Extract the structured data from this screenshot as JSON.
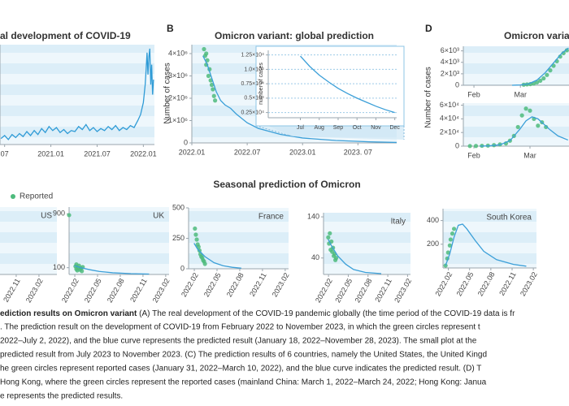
{
  "panel_labels": [
    "B",
    "D"
  ],
  "seasonal_title": "Seasonal prediction of Omicron",
  "caption": {
    "lead": "ediction results on Omicron variant",
    "lines": [
      " (A) The real development of the COVID-19 pandemic globally (the time period of the COVID-19 data is fr",
      ". The prediction result on the development of COVID-19 from February 2022 to November 2023, in which the green circles represent t",
      "2022–July 2, 2022), and the blue curve represents the predicted result (January 18, 2022–November 28, 2023). The small plot at the",
      "predicted result from July 2023 to November 2023. (C) The prediction results of 6 countries, namely the United States, the United Kingd",
      "he green circles represent reported cases (January 31, 2022–March 10, 2022), and the blue curve indicates the predicted result. (D) T",
      "Hong Kong, where the green circles represent the reported cases (mainland China: March 1, 2022–March 24, 2022; Hong Kong: Janua",
      "e represents the predicted results."
    ]
  },
  "chart_data": [
    {
      "type": "line",
      "title": "al development of COVID-19",
      "bands": true,
      "xlim": [
        2020.45,
        2022.12
      ],
      "ylim": [
        0,
        100
      ],
      "xticks": [
        {
          "value": 2020.5,
          "label": "07"
        },
        {
          "value": 2021.0,
          "label": "2021.01"
        },
        {
          "value": 2021.5,
          "label": "2021.07"
        },
        {
          "value": 2022.0,
          "label": "2022.01"
        }
      ],
      "series": [
        {
          "type": "line",
          "color": "#2f9bd6",
          "x": [
            2020.46,
            2020.5,
            2020.54,
            2020.58,
            2020.62,
            2020.66,
            2020.7,
            2020.74,
            2020.78,
            2020.82,
            2020.86,
            2020.9,
            2020.94,
            2020.98,
            2021.02,
            2021.06,
            2021.1,
            2021.14,
            2021.18,
            2021.22,
            2021.26,
            2021.3,
            2021.34,
            2021.38,
            2021.42,
            2021.46,
            2021.5,
            2021.54,
            2021.58,
            2021.62,
            2021.66,
            2021.7,
            2021.74,
            2021.78,
            2021.82,
            2021.86,
            2021.9,
            2021.94,
            2021.97,
            2022.0,
            2022.02,
            2022.03,
            2022.04,
            2022.05,
            2022.06,
            2022.07,
            2022.08,
            2022.09,
            2022.1,
            2022.11
          ],
          "values": [
            6,
            9,
            5,
            10,
            7,
            11,
            8,
            13,
            9,
            14,
            10,
            16,
            12,
            18,
            14,
            17,
            12,
            15,
            11,
            14,
            13,
            18,
            15,
            20,
            14,
            17,
            13,
            16,
            14,
            18,
            15,
            19,
            14,
            17,
            15,
            19,
            17,
            24,
            30,
            42,
            60,
            75,
            92,
            70,
            88,
            96,
            60,
            80,
            50,
            65
          ]
        }
      ]
    },
    {
      "type": "line",
      "title": "Omicron variant: global prediction",
      "ylabel": "Number of cases",
      "bands": true,
      "xlim": [
        2022.0,
        2023.85
      ],
      "ylim": [
        0,
        4400000
      ],
      "xticks": [
        {
          "value": 2022.0,
          "label": "2022.01"
        },
        {
          "value": 2022.5,
          "label": "2022.07"
        },
        {
          "value": 2023.0,
          "label": "2023.01"
        },
        {
          "value": 2023.5,
          "label": "2023. 07"
        }
      ],
      "yticks": [
        0,
        {
          "value": 1000000,
          "label": "1×10⁶"
        },
        {
          "value": 2000000,
          "label": "2×10⁶"
        },
        {
          "value": 3000000,
          "label": "3×10⁶"
        },
        {
          "value": 4000000,
          "label": "4×10⁶"
        }
      ],
      "series": [
        {
          "type": "scatter",
          "color": "#4dbb7c",
          "x": [
            2022.11,
            2022.12,
            2022.13,
            2022.13,
            2022.14,
            2022.15,
            2022.16,
            2022.17,
            2022.18,
            2022.19,
            2022.2,
            2022.21
          ],
          "values": [
            4200000,
            3900000,
            4000000,
            3500000,
            3700000,
            3000000,
            3300000,
            2800000,
            2600000,
            2400000,
            2100000,
            1900000
          ]
        },
        {
          "type": "line",
          "color": "#3b9fd8",
          "x": [
            2022.1,
            2022.14,
            2022.18,
            2022.22,
            2022.26,
            2022.3,
            2022.35,
            2022.4,
            2022.5,
            2022.6,
            2022.8,
            2023.0,
            2023.3,
            2023.6,
            2023.85
          ],
          "values": [
            3900000,
            3500000,
            2900000,
            2300000,
            1900000,
            1700000,
            1550000,
            1300000,
            900000,
            650000,
            380000,
            220000,
            110000,
            50000,
            20000
          ]
        }
      ]
    },
    {
      "type": "line",
      "ylabel": "number of cases",
      "grid": true,
      "xlim": [
        5.3,
        12.1
      ],
      "ylim": [
        1600,
        13300
      ],
      "xticks": [
        {
          "value": 7,
          "label": "Jul"
        },
        {
          "value": 8,
          "label": "Aug"
        },
        {
          "value": 9,
          "label": "Sep"
        },
        {
          "value": 10,
          "label": "Oct"
        },
        {
          "value": 11,
          "label": "Nov"
        },
        {
          "value": 12,
          "label": "Dec"
        }
      ],
      "yticks": [
        {
          "value": 2500,
          "label": "0.25×10⁴"
        },
        {
          "value": 5000,
          "label": "0.5×10⁴"
        },
        {
          "value": 7500,
          "label": "0.75×10⁴"
        },
        {
          "value": 10000,
          "label": "1.0×10⁴"
        },
        {
          "value": 12500,
          "label": "1.25×10⁴"
        }
      ],
      "series": [
        {
          "type": "line",
          "color": "#3b9fd8",
          "x": [
            7,
            7.5,
            8,
            8.5,
            9,
            9.5,
            10,
            10.5,
            11,
            11.5,
            12
          ],
          "values": [
            12300,
            10500,
            9000,
            7800,
            6700,
            5800,
            5000,
            4300,
            3600,
            3000,
            2500
          ]
        }
      ]
    },
    {
      "type": "line",
      "title": "Omicron varian",
      "ylabel": "Number of cases",
      "bands": true,
      "xlim": [
        25.6,
        89.3
      ],
      "ylim": [
        0,
        6800
      ],
      "xticks": [
        {
          "value": 32,
          "label": "Feb"
        },
        {
          "value": 60,
          "label": "Mar"
        }
      ],
      "yticks": [
        0,
        {
          "value": 2000,
          "label": "2×10³"
        },
        {
          "value": 4000,
          "label": "4×10³"
        },
        {
          "value": 6000,
          "label": "6×10³"
        }
      ],
      "series": [
        {
          "type": "scatter",
          "color": "#4dbb7c",
          "x": [
            62,
            64,
            66,
            68,
            70,
            72,
            74,
            76,
            78,
            80,
            82,
            84,
            86,
            88
          ],
          "values": [
            100,
            150,
            200,
            300,
            500,
            800,
            1200,
            1800,
            2600,
            3400,
            4200,
            5000,
            5600,
            6100
          ]
        },
        {
          "type": "line",
          "color": "#3b9fd8",
          "x": [
            55,
            60,
            65,
            70,
            75,
            80,
            85,
            89
          ],
          "values": [
            0,
            50,
            250,
            900,
            2200,
            3900,
            5600,
            6500
          ]
        }
      ]
    },
    {
      "type": "line",
      "bands": true,
      "xlim": [
        26.7,
        79.5
      ],
      "ylim": [
        0,
        63000
      ],
      "xticks": [
        {
          "value": 32,
          "label": "Feb"
        },
        {
          "value": 60,
          "label": "Mar"
        }
      ],
      "yticks": [
        0,
        {
          "value": 20000,
          "label": "2×10⁴"
        },
        {
          "value": 40000,
          "label": "4×10⁴"
        },
        {
          "value": 60000,
          "label": "6×10⁴"
        }
      ],
      "series": [
        {
          "type": "scatter",
          "color": "#4dbb7c",
          "x": [
            30,
            33,
            36,
            39,
            42,
            45,
            48,
            50,
            52,
            54,
            56,
            58,
            60,
            62,
            64,
            66,
            68
          ],
          "values": [
            200,
            300,
            500,
            800,
            1500,
            2500,
            4000,
            8000,
            15000,
            28000,
            45000,
            55000,
            52000,
            40000,
            30000,
            35000,
            28000
          ]
        },
        {
          "type": "line",
          "color": "#3b9fd8",
          "x": [
            35,
            40,
            45,
            50,
            55,
            58,
            61,
            64,
            67,
            70,
            74,
            79
          ],
          "values": [
            0,
            500,
            2000,
            8000,
            25000,
            37000,
            43000,
            40000,
            32000,
            24000,
            15000,
            9000
          ]
        }
      ]
    },
    {
      "type": "line",
      "title": "US",
      "bands": true,
      "rotate_xticks": true,
      "xlim": [
        2022.655,
        2023.28
      ],
      "xticks": [
        {
          "value": 2022.833,
          "label": "2022.11"
        },
        {
          "value": 2023.083,
          "label": "2023.02"
        }
      ]
    },
    {
      "type": "line",
      "title": "UK",
      "bands": true,
      "rotate_xticks": true,
      "xlim": [
        2022.02,
        2023.12
      ],
      "ylim": [
        0,
        1000
      ],
      "xticks": [
        {
          "value": 2022.083,
          "label": "2022.02"
        },
        {
          "value": 2022.333,
          "label": "2022.05"
        },
        {
          "value": 2022.583,
          "label": "2022.08"
        },
        {
          "value": 2022.833,
          "label": "2022.11"
        },
        {
          "value": 2023.083,
          "label": "2023.02"
        }
      ],
      "yticks": [
        100,
        900
      ],
      "series": [
        {
          "type": "scatter",
          "name": "Reported",
          "color": "#4dbb7c",
          "x": [
            2022.02,
            2022.09,
            2022.1,
            2022.1,
            2022.11,
            2022.12,
            2022.13,
            2022.14,
            2022.15,
            2022.16,
            2022.17
          ],
          "values": [
            880,
            120,
            80,
            150,
            60,
            100,
            130,
            70,
            90,
            50,
            110
          ]
        },
        {
          "type": "line",
          "color": "#3b9fd8",
          "x": [
            2022.08,
            2022.15,
            2022.25,
            2022.35,
            2022.5,
            2022.7,
            2022.9
          ],
          "values": [
            130,
            100,
            70,
            45,
            25,
            12,
            6
          ]
        }
      ]
    },
    {
      "type": "line",
      "title": "France",
      "bands": true,
      "rotate_xticks": true,
      "xlim": [
        2022.02,
        2023.12
      ],
      "ylim": [
        0,
        500
      ],
      "xticks": [
        {
          "value": 2022.083,
          "label": "2022.02"
        },
        {
          "value": 2022.333,
          "label": "2022.05"
        },
        {
          "value": 2022.583,
          "label": "2022.08"
        },
        {
          "value": 2022.833,
          "label": "2022.11"
        },
        {
          "value": 2023.083,
          "label": "2023.02"
        }
      ],
      "yticks": [
        0,
        250,
        500
      ],
      "series": [
        {
          "type": "scatter",
          "color": "#4dbb7c",
          "x": [
            2022.09,
            2022.1,
            2022.11,
            2022.12,
            2022.13,
            2022.14,
            2022.15,
            2022.16,
            2022.17,
            2022.18,
            2022.19,
            2022.2
          ],
          "values": [
            330,
            280,
            240,
            200,
            180,
            150,
            120,
            100,
            90,
            70,
            60,
            40
          ]
        },
        {
          "type": "line",
          "color": "#3b9fd8",
          "x": [
            2022.08,
            2022.12,
            2022.2,
            2022.3,
            2022.4,
            2022.5,
            2022.6
          ],
          "values": [
            210,
            160,
            100,
            50,
            25,
            12,
            5
          ]
        }
      ]
    },
    {
      "type": "line",
      "title": "Italy",
      "bands": true,
      "rotate_xticks": true,
      "xlim": [
        2022.02,
        2023.12
      ],
      "ylim": [
        0,
        150
      ],
      "xticks": [
        {
          "value": 2022.083,
          "label": "2022.02"
        },
        {
          "value": 2022.333,
          "label": "2022.05"
        },
        {
          "value": 2022.583,
          "label": "2022.08"
        },
        {
          "value": 2022.833,
          "label": "2022.11"
        },
        {
          "value": 2023.083,
          "label": "2023.02"
        }
      ],
      "yticks": [
        40,
        140
      ],
      "series": [
        {
          "type": "scatter",
          "color": "#4dbb7c",
          "x": [
            2022.08,
            2022.09,
            2022.1,
            2022.11,
            2022.12,
            2022.13,
            2022.14,
            2022.15,
            2022.16,
            2022.17,
            2022.18
          ],
          "values": [
            90,
            75,
            100,
            60,
            80,
            55,
            65,
            45,
            50,
            35,
            40
          ]
        },
        {
          "type": "line",
          "color": "#3b9fd8",
          "x": [
            2022.08,
            2022.12,
            2022.2,
            2022.3,
            2022.4,
            2022.55,
            2022.75
          ],
          "values": [
            85,
            70,
            45,
            25,
            12,
            5,
            2
          ]
        }
      ]
    },
    {
      "type": "line",
      "title": "South Korea",
      "bands": true,
      "rotate_xticks": true,
      "xlim": [
        2022.02,
        2023.12
      ],
      "ylim": [
        0,
        500
      ],
      "xticks": [
        {
          "value": 2022.083,
          "label": "2022.02"
        },
        {
          "value": 2022.333,
          "label": "2022.05"
        },
        {
          "value": 2022.583,
          "label": "2022.08"
        },
        {
          "value": 2022.833,
          "label": "2022.11"
        },
        {
          "value": 2023.083,
          "label": "2023.02"
        }
      ],
      "yticks": [
        200,
        400
      ],
      "series": [
        {
          "type": "scatter",
          "color": "#4dbb7c",
          "x": [
            2022.05,
            2022.07,
            2022.08,
            2022.1,
            2022.11,
            2022.13,
            2022.15
          ],
          "values": [
            20,
            80,
            130,
            190,
            240,
            290,
            330
          ]
        },
        {
          "type": "line",
          "color": "#3b9fd8",
          "x": [
            2022.05,
            2022.1,
            2022.15,
            2022.2,
            2022.25,
            2022.3,
            2022.4,
            2022.5,
            2022.65,
            2022.85,
            2023.0
          ],
          "values": [
            20,
            120,
            260,
            360,
            370,
            330,
            230,
            140,
            70,
            30,
            15
          ]
        }
      ]
    }
  ]
}
